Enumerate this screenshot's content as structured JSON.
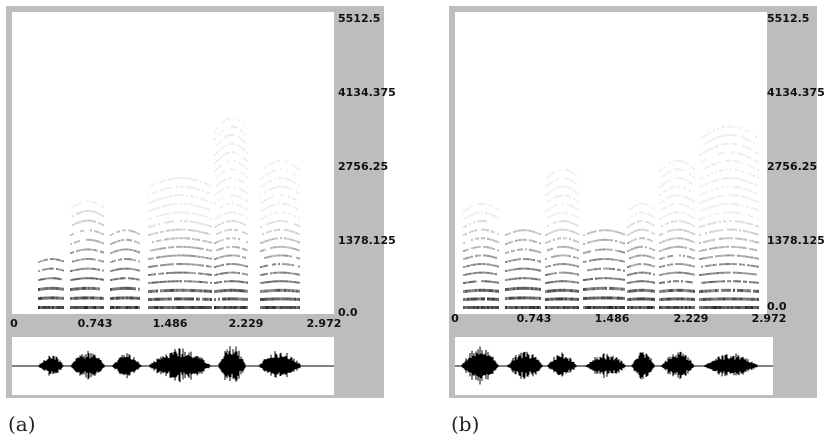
{
  "panels": [
    {
      "id": "a",
      "caption": "(a)",
      "y_labels": [
        "5512.5",
        "4134.375",
        "2756.25",
        "1378.125",
        "0.0"
      ],
      "x_labels": [
        "0",
        "0.743",
        "1.486",
        "2.229",
        "2.972"
      ]
    },
    {
      "id": "b",
      "caption": "(b)",
      "y_labels": [
        "5512.5",
        "4134.375",
        "2756.25",
        "1378.125",
        "0.0"
      ],
      "x_labels": [
        "0",
        "0.743",
        "1.486",
        "2.229",
        "2.972"
      ]
    }
  ]
}
